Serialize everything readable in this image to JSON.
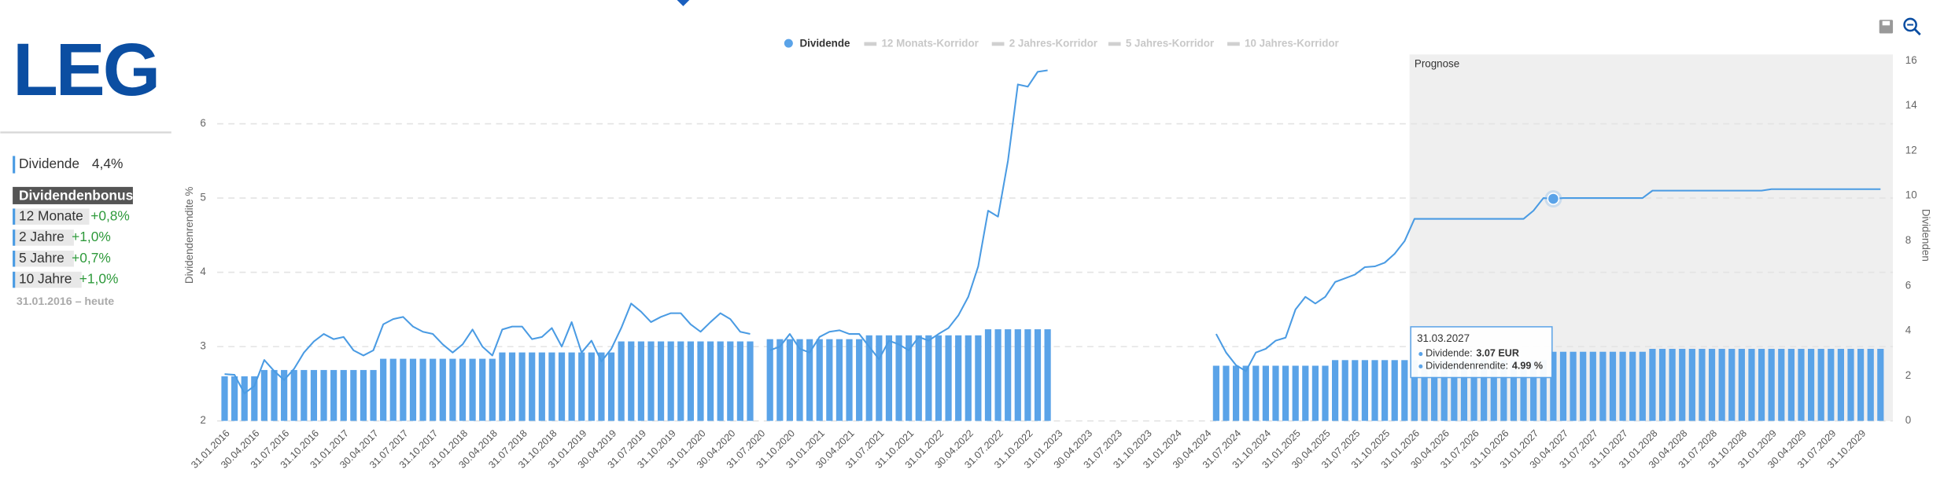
{
  "sidebar": {
    "logo": "LEG",
    "dividend": {
      "label": "Dividende",
      "value": "4,4%"
    },
    "bonus_title": "Dividendenbonus",
    "bonus": [
      {
        "label": "12 Monate",
        "value": "+0,8%"
      },
      {
        "label": "2 Jahre",
        "value": "+1,0%"
      },
      {
        "label": "5 Jahre",
        "value": "+0,7%"
      },
      {
        "label": "10 Jahre",
        "value": "+1,0%"
      }
    ],
    "period": "31.01.2016 – heute"
  },
  "chart_data": {
    "type": "combo",
    "ylabel": "Dividendenrendite %",
    "y2label": "Dividenden",
    "forecast_label": "Prognose",
    "ylim": [
      2,
      7
    ],
    "yticks": [
      2,
      3,
      4,
      5,
      6
    ],
    "y2lim": [
      0,
      16.5
    ],
    "y2ticks": [
      0,
      2,
      4,
      6,
      8,
      10,
      12,
      14,
      16
    ],
    "grid": true,
    "inactive_series": [
      "12 Monats-Korridor",
      "2 Jahres-Korridor",
      "5 Jahres-Korridor",
      "10 Jahres-Korridor"
    ],
    "categories": [
      "31.01.2016",
      null,
      null,
      "30.04.2016",
      null,
      null,
      "31.07.2016",
      null,
      null,
      "31.10.2016",
      null,
      null,
      "31.01.2017",
      null,
      null,
      "30.04.2017",
      null,
      null,
      "31.07.2017",
      null,
      null,
      "31.10.2017",
      null,
      null,
      "31.01.2018",
      null,
      null,
      "30.04.2018",
      null,
      null,
      "31.07.2018",
      null,
      null,
      "31.10.2018",
      null,
      null,
      "31.01.2019",
      null,
      null,
      "30.04.2019",
      null,
      null,
      "31.07.2019",
      null,
      null,
      "31.10.2019",
      null,
      null,
      "31.01.2020",
      null,
      null,
      "30.04.2020",
      null,
      null,
      "31.07.2020",
      null,
      null,
      "31.10.2020",
      null,
      null,
      "31.01.2021",
      null,
      null,
      "30.04.2021",
      null,
      null,
      "31.07.2021",
      null,
      null,
      "31.10.2021",
      null,
      null,
      "31.01.2022",
      null,
      null,
      "30.04.2022",
      null,
      null,
      "31.07.2022",
      null,
      null,
      "31.10.2022",
      null,
      null,
      "31.01.2023",
      null,
      null,
      "30.04.2023",
      null,
      null,
      "31.07.2023",
      null,
      null,
      "31.10.2023",
      null,
      null,
      "31.01.2024",
      null,
      null,
      "30.04.2024",
      null,
      null,
      "31.07.2024",
      null,
      null,
      "31.10.2024",
      null,
      null,
      "31.01.2025",
      null,
      null,
      "30.04.2025",
      null,
      null,
      "31.07.2025",
      null,
      null,
      "31.10.2025",
      null,
      null,
      "31.01.2026",
      null,
      null,
      "30.04.2026",
      null,
      null,
      "31.07.2026",
      null,
      null,
      "31.10.2026",
      null,
      null,
      "31.01.2027",
      null,
      null,
      "30.04.2027",
      null,
      null,
      "31.07.2027",
      null,
      null,
      "31.10.2027",
      null,
      null,
      "31.01.2028",
      null,
      null,
      "30.04.2028",
      null,
      null,
      "31.07.2028",
      null,
      null,
      "31.10.2028",
      null,
      null,
      "31.01.2029",
      null,
      null,
      "30.04.2029",
      null,
      null,
      "31.07.2029",
      null,
      null,
      "31.10.2029",
      null,
      null
    ],
    "series": [
      {
        "name": "Dividende",
        "type": "bar",
        "axis": "y2",
        "color": "#5aa3e8",
        "values": [
          1.98,
          1.98,
          1.98,
          1.98,
          2.26,
          2.26,
          2.26,
          2.26,
          2.26,
          2.26,
          2.26,
          2.26,
          2.26,
          2.26,
          2.26,
          2.26,
          2.76,
          2.76,
          2.76,
          2.76,
          2.76,
          2.76,
          2.76,
          2.76,
          2.76,
          2.76,
          2.76,
          2.76,
          3.04,
          3.04,
          3.04,
          3.04,
          3.04,
          3.04,
          3.04,
          3.04,
          3.04,
          3.04,
          3.04,
          3.04,
          3.53,
          3.53,
          3.53,
          3.53,
          3.53,
          3.53,
          3.53,
          3.53,
          3.53,
          3.53,
          3.53,
          3.53,
          3.53,
          3.53,
          null,
          3.63,
          3.63,
          3.63,
          3.63,
          3.63,
          3.63,
          3.63,
          3.63,
          3.63,
          3.63,
          3.8,
          3.8,
          3.8,
          3.8,
          3.8,
          3.8,
          3.8,
          3.8,
          3.8,
          3.8,
          3.8,
          3.8,
          4.07,
          4.07,
          4.07,
          4.07,
          4.07,
          4.07,
          4.07,
          null,
          null,
          null,
          null,
          null,
          null,
          null,
          null,
          null,
          null,
          null,
          null,
          null,
          null,
          null,
          null,
          2.45,
          2.45,
          2.45,
          2.45,
          2.45,
          2.45,
          2.45,
          2.45,
          2.45,
          2.45,
          2.45,
          2.45,
          2.7,
          2.7,
          2.7,
          2.7,
          2.7,
          2.7,
          2.7,
          2.7,
          2.7,
          2.7,
          2.7,
          2.7,
          2.7,
          2.7,
          2.7,
          2.7,
          2.7,
          2.7,
          2.7,
          2.7,
          2.7,
          2.7,
          3.07,
          3.07,
          3.07,
          3.07,
          3.07,
          3.07,
          3.07,
          3.07,
          3.07,
          3.07,
          3.2,
          3.2,
          3.2,
          3.2,
          3.2,
          3.2,
          3.2,
          3.2,
          3.2,
          3.2,
          3.2,
          3.2,
          3.2,
          3.2,
          3.2,
          3.2,
          3.2,
          3.2,
          3.2,
          3.2,
          3.2,
          3.2,
          3.2,
          3.2
        ]
      },
      {
        "type": "line",
        "axis": "y",
        "color": "#4a9be3",
        "values": [
          2.63,
          2.62,
          2.37,
          2.47,
          2.82,
          2.67,
          2.55,
          2.7,
          2.92,
          3.07,
          3.17,
          3.1,
          3.13,
          2.95,
          2.88,
          2.95,
          3.3,
          3.37,
          3.4,
          3.27,
          3.2,
          3.17,
          3.03,
          2.92,
          3.03,
          3.23,
          3.0,
          2.88,
          3.23,
          3.27,
          3.27,
          3.1,
          3.13,
          3.25,
          3.0,
          3.33,
          2.92,
          3.08,
          2.8,
          2.97,
          3.25,
          3.58,
          3.47,
          3.33,
          3.4,
          3.45,
          3.45,
          3.3,
          3.2,
          3.33,
          3.45,
          3.37,
          3.2,
          3.17,
          null,
          2.95,
          3.0,
          3.17,
          2.97,
          2.92,
          3.13,
          3.2,
          3.22,
          3.17,
          3.17,
          3.0,
          2.83,
          3.08,
          3.03,
          2.95,
          3.13,
          3.08,
          3.17,
          3.25,
          3.42,
          3.67,
          4.08,
          4.83,
          4.75,
          5.5,
          6.53,
          6.5,
          6.7,
          6.72,
          null,
          null,
          null,
          null,
          null,
          null,
          null,
          null,
          null,
          null,
          null,
          null,
          null,
          null,
          null,
          null,
          3.17,
          2.92,
          2.75,
          2.67,
          2.92,
          2.97,
          3.08,
          3.12,
          3.5,
          3.67,
          3.58,
          3.67,
          3.87,
          3.92,
          3.97,
          4.07,
          4.08,
          4.13,
          4.25,
          4.42,
          4.72,
          4.72,
          4.72,
          4.72,
          4.72,
          4.72,
          4.72,
          4.72,
          4.72,
          4.72,
          4.72,
          4.72,
          4.83,
          5.0,
          4.99,
          5.0,
          5.0,
          5.0,
          5.0,
          5.0,
          5.0,
          5.0,
          5.0,
          5.0,
          5.1,
          5.1,
          5.1,
          5.1,
          5.1,
          5.1,
          5.1,
          5.1,
          5.1,
          5.1,
          5.1,
          5.1,
          5.12,
          5.12,
          5.12,
          5.12,
          5.12,
          5.12,
          5.12,
          5.12,
          5.12,
          5.12,
          5.12,
          5.12
        ]
      }
    ],
    "tooltip": {
      "date": "31.03.2027",
      "items": [
        {
          "label": "Dividende:",
          "value": "3.07 EUR"
        },
        {
          "label": "Dividendenrendite:",
          "value": "4.99 %"
        }
      ]
    }
  }
}
